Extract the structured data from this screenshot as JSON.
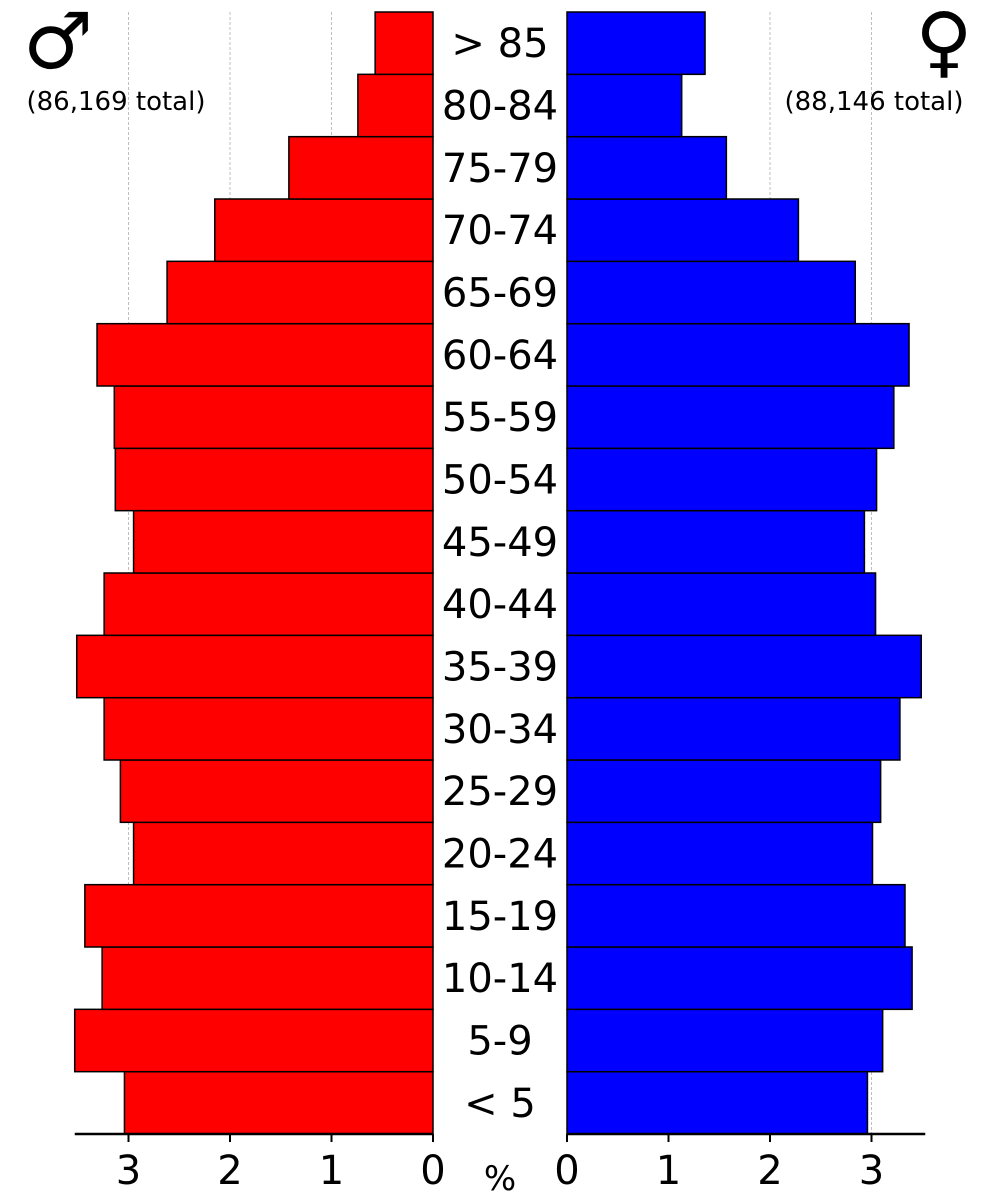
{
  "chart_data": {
    "type": "bar",
    "orientation": "horizontal",
    "chart_kind": "population-pyramid",
    "categories": [
      "< 5",
      "5-9",
      "10-14",
      "15-19",
      "20-24",
      "25-29",
      "30-34",
      "35-39",
      "40-44",
      "45-49",
      "50-54",
      "55-59",
      "60-64",
      "65-69",
      "70-74",
      "75-79",
      "80-84",
      "> 85"
    ],
    "series": [
      {
        "side": "left",
        "color": "#ff0000",
        "symbol": "♂",
        "total_label": "(86,169 total)",
        "values": [
          3.04,
          3.53,
          3.26,
          3.43,
          2.95,
          3.08,
          3.24,
          3.51,
          3.24,
          2.95,
          3.13,
          3.14,
          3.31,
          2.62,
          2.15,
          1.42,
          0.74,
          0.57
        ]
      },
      {
        "side": "right",
        "color": "#0000ff",
        "symbol": "♀",
        "total_label": "(88,146 total)",
        "values": [
          2.96,
          3.11,
          3.4,
          3.33,
          3.01,
          3.09,
          3.28,
          3.49,
          3.04,
          2.93,
          3.05,
          3.22,
          3.37,
          2.84,
          2.28,
          1.57,
          1.13,
          1.36
        ]
      }
    ],
    "xlim": [
      0,
      3.5
    ],
    "ticks": [
      0,
      1,
      2,
      3
    ],
    "unit": "%",
    "grid": true
  }
}
